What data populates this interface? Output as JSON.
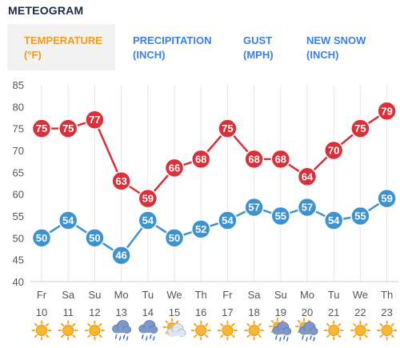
{
  "page": {
    "title": "METEOGRAM"
  },
  "tabs": [
    {
      "line1": "TEMPERATURE",
      "line2": "(°F)",
      "active": true
    },
    {
      "line1": "PRECIPITATION",
      "line2": "(INCH)",
      "active": false
    },
    {
      "line1": "GUST",
      "line2": "(MPH)",
      "active": false
    },
    {
      "line1": "NEW SNOW",
      "line2": "(INCH)",
      "active": false
    }
  ],
  "colors": {
    "high": "#d9303a",
    "low": "#3c93cf",
    "active_tab": "#f09a1e",
    "tab": "#3d7fe0"
  },
  "chart_data": {
    "type": "line",
    "title": "",
    "xlabel": "",
    "ylabel": "",
    "ylim": [
      40,
      85
    ],
    "yticks": [
      40,
      45,
      50,
      55,
      60,
      65,
      70,
      75,
      80,
      85
    ],
    "grid": true,
    "days": [
      "Fr",
      "Sa",
      "Su",
      "Mo",
      "Tu",
      "We",
      "Th",
      "Fr",
      "Sa",
      "Su",
      "Mo",
      "Tu",
      "We",
      "Th"
    ],
    "dates": [
      "10",
      "11",
      "12",
      "13",
      "14",
      "15",
      "16",
      "17",
      "18",
      "19",
      "20",
      "21",
      "22",
      "23"
    ],
    "weather_icons": [
      "sun-icon",
      "sun-icon",
      "sun-icon",
      "rain-cloud-icon",
      "rain-cloud-icon",
      "partly-cloudy-icon",
      "sun-icon",
      "sun-icon",
      "sun-icon",
      "sun-cloud-rain-icon",
      "sun-cloud-rain-icon",
      "sun-icon",
      "sun-icon",
      "sun-icon"
    ],
    "series": [
      {
        "values": [
          75,
          75,
          77,
          63,
          59,
          66,
          68,
          75,
          68,
          68,
          64,
          70,
          75,
          79
        ]
      },
      {
        "values": [
          50,
          54,
          50,
          46,
          54,
          50,
          52,
          54,
          57,
          55,
          57,
          54,
          55,
          59
        ]
      }
    ]
  }
}
